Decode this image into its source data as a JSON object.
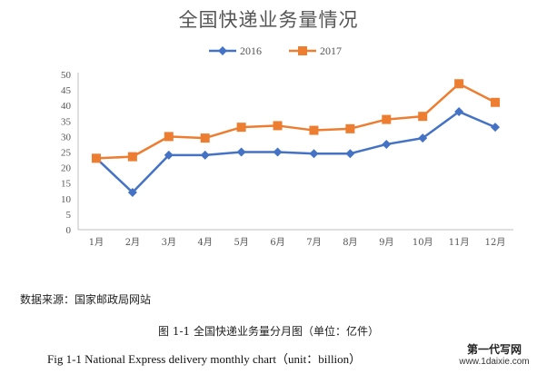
{
  "chart_data": {
    "type": "line",
    "title": "全国快递业务量情况",
    "categories": [
      "1月",
      "2月",
      "3月",
      "4月",
      "5月",
      "6月",
      "7月",
      "8月",
      "9月",
      "10月",
      "11月",
      "12月"
    ],
    "series": [
      {
        "name": "2016",
        "color": "#4472C4",
        "marker": "diamond",
        "values": [
          23,
          12,
          24,
          24,
          25,
          25,
          24.5,
          24.5,
          27.5,
          29.5,
          38,
          33
        ]
      },
      {
        "name": "2017",
        "color": "#ED7D31",
        "marker": "square",
        "values": [
          23,
          23.5,
          30,
          29.5,
          33,
          33.5,
          32,
          32.5,
          35.5,
          36.5,
          47,
          41
        ]
      }
    ],
    "ylim": [
      0,
      50
    ],
    "yticks": [
      0,
      5,
      10,
      15,
      20,
      25,
      30,
      35,
      40,
      45,
      50
    ],
    "grid": false,
    "legend": "top-center"
  },
  "source_note": "数据来源：国家邮政局网站",
  "caption_cn": "图 1-1  全国快递业务量分月图（单位：亿件）",
  "caption_en": "Fig 1-1 National Express delivery monthly chart（unit：billion）",
  "watermark": {
    "text": "第一代写网",
    "url": "www.1daixie.com"
  }
}
